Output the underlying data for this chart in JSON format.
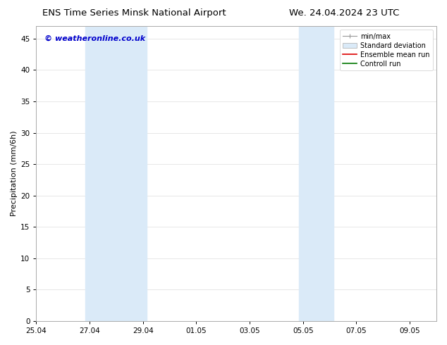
{
  "title_left": "ENS Time Series Minsk National Airport",
  "title_right": "We. 24.04.2024 23 UTC",
  "ylabel": "Precipitation (mm/6h)",
  "xlabel": "",
  "ylim": [
    0,
    47
  ],
  "yticks": [
    0,
    5,
    10,
    15,
    20,
    25,
    30,
    35,
    40,
    45
  ],
  "xtick_labels": [
    "25.04",
    "27.04",
    "29.04",
    "01.05",
    "03.05",
    "05.05",
    "07.05",
    "09.05"
  ],
  "xtick_positions": [
    0,
    2,
    4,
    6,
    8,
    10,
    12,
    14
  ],
  "xlim": [
    0,
    15
  ],
  "watermark": "© weatheronline.co.uk",
  "legend_entries": [
    "min/max",
    "Standard deviation",
    "Ensemble mean run",
    "Controll run"
  ],
  "shaded_regions": [
    {
      "x_start": 1.85,
      "x_end": 4.15,
      "color": "#daeaf8"
    },
    {
      "x_start": 9.85,
      "x_end": 11.15,
      "color": "#daeaf8"
    }
  ],
  "background_color": "#ffffff",
  "plot_bg_color": "#ffffff",
  "title_fontsize": 9.5,
  "axis_label_fontsize": 8,
  "tick_fontsize": 7.5,
  "legend_fontsize": 7,
  "watermark_color": "#0000cc",
  "watermark_fontsize": 8,
  "grid_color": "#dddddd"
}
